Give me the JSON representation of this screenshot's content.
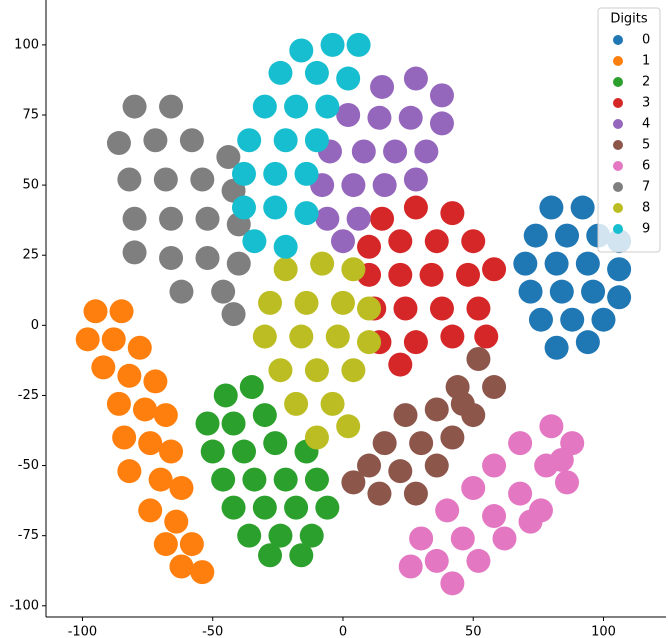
{
  "chart_data": {
    "type": "scatter",
    "legend_title": "Digits",
    "legend": "upper right",
    "xlim": [
      -114,
      124
    ],
    "ylim": [
      -104,
      116
    ],
    "xticks": [
      -100,
      -50,
      0,
      50,
      100
    ],
    "yticks": [
      -100,
      -75,
      -50,
      -25,
      0,
      25,
      50,
      75,
      100
    ],
    "series": [
      {
        "name": "0",
        "color": "#1f77b4",
        "x": [
          80,
          92,
          74,
          86,
          98,
          106,
          70,
          82,
          94,
          106,
          72,
          84,
          96,
          106,
          76,
          88,
          100,
          82,
          94
        ],
        "y": [
          42,
          42,
          32,
          32,
          32,
          30,
          22,
          22,
          22,
          20,
          12,
          12,
          12,
          10,
          2,
          2,
          2,
          -8,
          -6
        ]
      },
      {
        "name": "1",
        "color": "#ff7f0e",
        "x": [
          -95,
          -85,
          -98,
          -88,
          -78,
          -92,
          -82,
          -72,
          -86,
          -76,
          -68,
          -84,
          -74,
          -66,
          -82,
          -70,
          -62,
          -74,
          -64,
          -68,
          -58,
          -62,
          -54
        ],
        "y": [
          5,
          5,
          -5,
          -5,
          -8,
          -15,
          -18,
          -20,
          -28,
          -30,
          -32,
          -40,
          -42,
          -45,
          -52,
          -55,
          -58,
          -66,
          -70,
          -78,
          -78,
          -86,
          -88
        ]
      },
      {
        "name": "2",
        "color": "#2ca02c",
        "x": [
          -45,
          -35,
          -52,
          -42,
          -30,
          -50,
          -38,
          -26,
          -14,
          -46,
          -34,
          -22,
          -10,
          -42,
          -30,
          -18,
          -6,
          -36,
          -24,
          -12,
          -28,
          -16
        ],
        "y": [
          -25,
          -22,
          -35,
          -35,
          -32,
          -45,
          -45,
          -42,
          -45,
          -55,
          -55,
          -55,
          -55,
          -65,
          -65,
          -65,
          -65,
          -75,
          -75,
          -75,
          -82,
          -82
        ]
      },
      {
        "name": "3",
        "color": "#d62728",
        "x": [
          15,
          28,
          42,
          10,
          22,
          36,
          50,
          10,
          22,
          34,
          48,
          58,
          12,
          24,
          38,
          52,
          14,
          28,
          42,
          55,
          22
        ],
        "y": [
          38,
          42,
          40,
          28,
          30,
          30,
          30,
          18,
          18,
          18,
          18,
          20,
          6,
          6,
          6,
          6,
          -6,
          -6,
          -4,
          -4,
          -14
        ]
      },
      {
        "name": "4",
        "color": "#9467bd",
        "x": [
          15,
          28,
          38,
          2,
          14,
          26,
          38,
          -5,
          8,
          20,
          32,
          -8,
          4,
          16,
          28,
          -6,
          6,
          0
        ],
        "y": [
          85,
          88,
          82,
          75,
          74,
          74,
          72,
          62,
          62,
          62,
          62,
          50,
          50,
          50,
          52,
          38,
          38,
          30
        ]
      },
      {
        "name": "5",
        "color": "#8c564b",
        "x": [
          52,
          58,
          44,
          50,
          36,
          24,
          42,
          30,
          16,
          36,
          22,
          10,
          28,
          14,
          4,
          46
        ],
        "y": [
          -12,
          -22,
          -22,
          -32,
          -30,
          -32,
          -40,
          -42,
          -42,
          -50,
          -52,
          -50,
          -60,
          -60,
          -56,
          -28
        ]
      },
      {
        "name": "6",
        "color": "#e377c2",
        "x": [
          80,
          88,
          68,
          78,
          58,
          86,
          68,
          50,
          76,
          58,
          40,
          62,
          46,
          30,
          52,
          36,
          26,
          42,
          84,
          72
        ],
        "y": [
          -36,
          -42,
          -42,
          -50,
          -50,
          -56,
          -60,
          -58,
          -66,
          -68,
          -66,
          -76,
          -76,
          -76,
          -84,
          -84,
          -86,
          -92,
          -48,
          -70
        ]
      },
      {
        "name": "7",
        "color": "#7f7f7f",
        "x": [
          -80,
          -66,
          -86,
          -72,
          -58,
          -44,
          -82,
          -68,
          -54,
          -42,
          -80,
          -66,
          -52,
          -40,
          -80,
          -66,
          -52,
          -40,
          -62,
          -46,
          -42
        ],
        "y": [
          78,
          78,
          65,
          66,
          66,
          60,
          52,
          52,
          52,
          48,
          38,
          38,
          38,
          36,
          26,
          24,
          24,
          22,
          12,
          12,
          4
        ]
      },
      {
        "name": "8",
        "color": "#bcbd22",
        "x": [
          -22,
          -8,
          4,
          -28,
          -14,
          0,
          10,
          -30,
          -16,
          -2,
          10,
          -24,
          -10,
          4,
          -18,
          -4,
          -10,
          2
        ],
        "y": [
          20,
          22,
          20,
          8,
          8,
          8,
          6,
          -4,
          -4,
          -4,
          -6,
          -16,
          -16,
          -16,
          -28,
          -28,
          -40,
          -36
        ]
      },
      {
        "name": "9",
        "color": "#17becf",
        "x": [
          -16,
          -4,
          6,
          -24,
          -10,
          2,
          -30,
          -18,
          -6,
          -36,
          -22,
          -10,
          -38,
          -26,
          -14,
          -38,
          -26,
          -14,
          -34,
          -22
        ],
        "y": [
          98,
          100,
          100,
          90,
          90,
          88,
          78,
          78,
          78,
          66,
          66,
          66,
          54,
          54,
          54,
          42,
          42,
          40,
          30,
          28
        ]
      }
    ]
  }
}
